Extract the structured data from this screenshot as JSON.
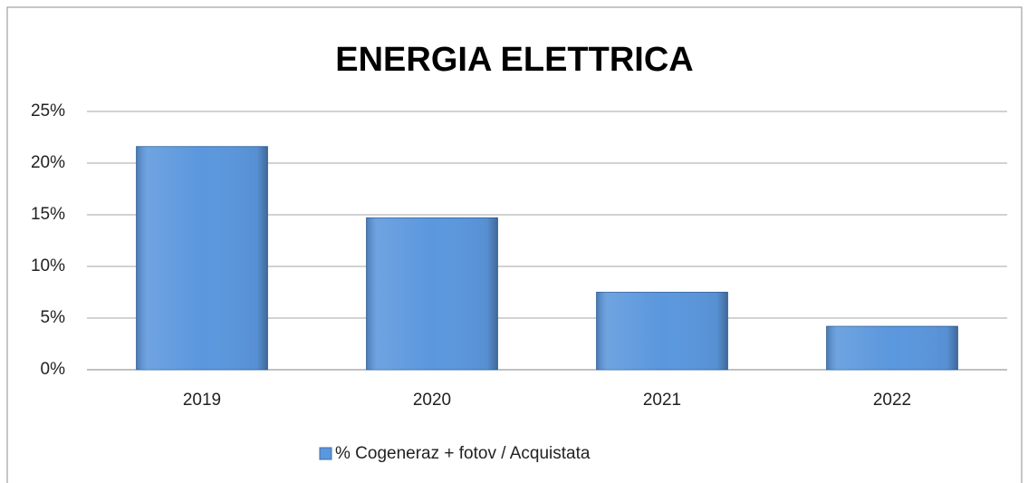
{
  "chart_data": {
    "type": "bar",
    "title": "ENERGIA ELETTRICA",
    "categories": [
      "2019",
      "2020",
      "2021",
      "2022"
    ],
    "series": [
      {
        "name": "% Cogeneraz + fotov / Acquistata",
        "color": "#5b97dd",
        "values": [
          21.6,
          14.7,
          7.5,
          4.2
        ]
      }
    ],
    "ylim": [
      0,
      25
    ],
    "yticks": [
      {
        "value": 0,
        "label": "0%"
      },
      {
        "value": 5,
        "label": "5%"
      },
      {
        "value": 10,
        "label": "10%"
      },
      {
        "value": 15,
        "label": "15%"
      },
      {
        "value": 20,
        "label": "20%"
      },
      {
        "value": 25,
        "label": "25%"
      }
    ],
    "grid": true,
    "legend": "bottom"
  }
}
